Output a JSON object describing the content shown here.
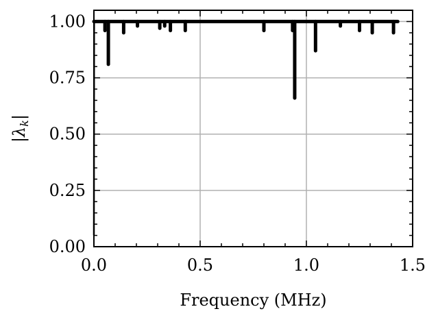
{
  "chart_data": {
    "type": "line",
    "title": "",
    "xlabel": "Frequency (MHz)",
    "ylabel": "|λk|",
    "ylabel_parts": {
      "lambda": "λ",
      "sub": "k"
    },
    "xlim": [
      0.0,
      1.5
    ],
    "ylim": [
      0.0,
      1.05
    ],
    "xticks": [
      0.0,
      0.5,
      1.0,
      1.5
    ],
    "xtick_labels": [
      "0.0",
      "0.5",
      "1.0",
      "1.5"
    ],
    "yticks": [
      0.0,
      0.25,
      0.5,
      0.75,
      1.0
    ],
    "ytick_labels": [
      "0.00",
      "0.25",
      "0.50",
      "0.75",
      "1.00"
    ],
    "grid": true,
    "series": [
      {
        "color": "#000000",
        "baseline": 1.0,
        "x_start": 0.0,
        "x_end": 1.43,
        "initial_rise": [
          [
            0.0,
            0.05
          ],
          [
            0.001,
            1.0
          ]
        ],
        "dips": [
          {
            "x": 0.052,
            "y": 0.96
          },
          {
            "x": 0.068,
            "y": 0.81
          },
          {
            "x": 0.14,
            "y": 0.95
          },
          {
            "x": 0.205,
            "y": 0.98
          },
          {
            "x": 0.31,
            "y": 0.97
          },
          {
            "x": 0.333,
            "y": 0.98
          },
          {
            "x": 0.36,
            "y": 0.96
          },
          {
            "x": 0.43,
            "y": 0.96
          },
          {
            "x": 0.8,
            "y": 0.96
          },
          {
            "x": 0.935,
            "y": 0.96
          },
          {
            "x": 0.945,
            "y": 0.66
          },
          {
            "x": 1.043,
            "y": 0.87
          },
          {
            "x": 1.16,
            "y": 0.98
          },
          {
            "x": 1.25,
            "y": 0.96
          },
          {
            "x": 1.31,
            "y": 0.95
          },
          {
            "x": 1.41,
            "y": 0.95
          }
        ]
      }
    ]
  }
}
